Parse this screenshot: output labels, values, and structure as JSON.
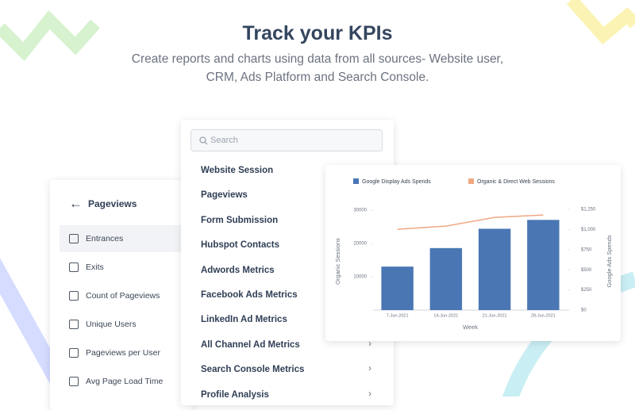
{
  "header": {
    "title": "Track your KPIs",
    "subtitle_lines": [
      "Create reports and charts using data from all sources- Website user,",
      "CRM, Ads Platform and Search Console."
    ]
  },
  "filter_panel": {
    "title": "Pageviews",
    "highlighted": 0,
    "options": [
      "Entrances",
      "Exits",
      "Count of Pageviews",
      "Unique Users",
      "Pageviews per User",
      "Avg Page Load Time"
    ]
  },
  "metric_list": {
    "search_placeholder": "Search",
    "items": [
      {
        "label": "Website Session",
        "chevron": false
      },
      {
        "label": "Pageviews",
        "chevron": false
      },
      {
        "label": "Form Submission",
        "chevron": false
      },
      {
        "label": "Hubspot Contacts",
        "chevron": false
      },
      {
        "label": "Adwords Metrics",
        "chevron": false
      },
      {
        "label": "Facebook Ads Metrics",
        "chevron": false
      },
      {
        "label": "LinkedIn Ad Metrics",
        "chevron": false
      },
      {
        "label": "All Channel Ad Metrics",
        "chevron": true
      },
      {
        "label": "Search Console Metrics",
        "chevron": true
      },
      {
        "label": "Profile Analysis",
        "chevron": true
      }
    ]
  },
  "chart_data": {
    "type": "bar",
    "categories": [
      "7-Jun-2021",
      "14-Jun-2021",
      "21-Jun-2021",
      "28-Jun-2021"
    ],
    "series": [
      {
        "name": "Google Display Ads Spends",
        "color": "#4a77b4",
        "type": "bar",
        "axis": "y2",
        "values": [
          540,
          770,
          1010,
          1120
        ]
      },
      {
        "name": "Organic & Direct Web Sessions",
        "color": "#f0a882",
        "type": "line",
        "values": [
          24290,
          25240,
          27860,
          28570
        ]
      }
    ],
    "xlabel": "Week",
    "ylabel": "Organic Sessions",
    "y2label": "Google Ads Spends",
    "ylim": [
      0,
      31700
    ],
    "yticks": [
      10000,
      20000,
      30000
    ],
    "y2lim": [
      0,
      1310
    ],
    "y2ticks": [
      {
        "value": 0,
        "label": "$0"
      },
      {
        "value": 250,
        "label": "$250"
      },
      {
        "value": 500,
        "label": "$500"
      },
      {
        "value": 750,
        "label": "$750"
      },
      {
        "value": 1000,
        "label": "$1,000"
      },
      {
        "value": 1250,
        "label": "$1,250"
      }
    ]
  }
}
